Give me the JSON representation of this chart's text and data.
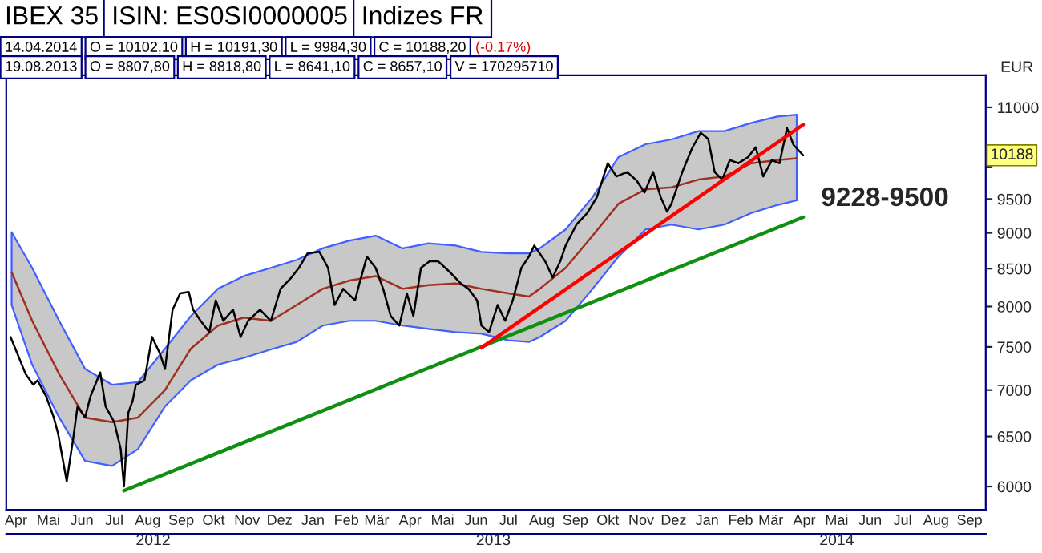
{
  "chart_data": {
    "type": "line",
    "title": "IBEX 35",
    "subtitle": "ISIN: ES0SI0000005",
    "ylabel": "EUR",
    "annotations": [
      "Indizes FR",
      "14.04.2014",
      "O = 10102,10",
      "H = 10191,30",
      "L = 9984,30",
      "C = 10188,20",
      "(-0.17%)",
      "19.08.2013",
      "O = 8807,80",
      "H = 8818,80",
      "L = 8641,10",
      "C = 8657,10",
      "V = 170295710",
      {
        "text": "9228-9500",
        "x": "2014-04-14",
        "y": 9500
      },
      {
        "text": "10188",
        "y": 10188
      }
    ],
    "log": true,
    "xlim": [
      "2012-04-06",
      "2014-09-30"
    ],
    "xticks": [
      {
        "value": "2012-04-15",
        "label": "Apr"
      },
      {
        "value": "2012-05-15",
        "label": "Mai"
      },
      {
        "value": "2012-06-15",
        "label": "Jun"
      },
      {
        "value": "2012-07-15",
        "label": "Jul"
      },
      {
        "value": "2012-08-15",
        "label": "Aug"
      },
      {
        "value": "2012-09-15",
        "label": "Sep"
      },
      {
        "value": "2012-10-15",
        "label": "Okt"
      },
      {
        "value": "2012-11-15",
        "label": "Nov"
      },
      {
        "value": "2012-12-15",
        "label": "Dez"
      },
      {
        "value": "2013-01-15",
        "label": "Jan"
      },
      {
        "value": "2013-02-15",
        "label": "Feb"
      },
      {
        "value": "2013-03-15",
        "label": "Mär"
      },
      {
        "value": "2013-04-15",
        "label": "Apr"
      },
      {
        "value": "2013-05-15",
        "label": "Mai"
      },
      {
        "value": "2013-06-15",
        "label": "Jun"
      },
      {
        "value": "2013-07-15",
        "label": "Jul"
      },
      {
        "value": "2013-08-15",
        "label": "Aug"
      },
      {
        "value": "2013-09-15",
        "label": "Sep"
      },
      {
        "value": "2013-10-15",
        "label": "Okt"
      },
      {
        "value": "2013-11-15",
        "label": "Nov"
      },
      {
        "value": "2013-12-15",
        "label": "Dez"
      },
      {
        "value": "2014-01-15",
        "label": "Jan"
      },
      {
        "value": "2014-02-15",
        "label": "Feb"
      },
      {
        "value": "2014-03-15",
        "label": "Mär"
      },
      {
        "value": "2014-04-15",
        "label": "Apr"
      },
      {
        "value": "2014-05-15",
        "label": "Mai"
      },
      {
        "value": "2014-06-15",
        "label": "Jun"
      },
      {
        "value": "2014-07-15",
        "label": "Jul"
      },
      {
        "value": "2014-08-15",
        "label": "Aug"
      },
      {
        "value": "2014-09-15",
        "label": "Sep"
      }
    ],
    "x2lim": [
      "2012-04-06",
      "2014-09-30"
    ],
    "x2ticks": [
      {
        "value": "2012-08-20",
        "label": "2012"
      },
      {
        "value": "2013-07-01",
        "label": "2013"
      },
      {
        "value": "2014-05-15",
        "label": "2014"
      }
    ],
    "ylim": [
      5780,
      11580
    ],
    "yticks": [
      6000,
      6500,
      7000,
      7500,
      8000,
      8500,
      9000,
      9500,
      {
        "value": 10000,
        "label": null
      },
      11000
    ],
    "series": [
      {
        "color": "#a03020",
        "x": [
          "2012-04-11",
          "2012-04-30",
          "2012-05-25",
          "2012-06-18",
          "2012-07-13",
          "2012-08-06",
          "2012-08-31",
          "2012-09-24",
          "2012-10-19",
          "2012-11-12",
          "2012-12-07",
          "2012-12-31",
          "2013-01-24",
          "2013-02-18",
          "2013-03-14",
          "2013-04-08",
          "2013-05-02",
          "2013-05-27",
          "2013-06-20",
          "2013-07-15",
          "2013-08-03",
          "2013-08-13",
          "2013-09-06",
          "2013-10-01",
          "2013-10-25",
          "2013-11-19",
          "2013-12-13",
          "2014-01-07",
          "2014-01-31",
          "2014-02-25",
          "2014-03-21",
          "2014-04-08"
        ],
        "values": [
          8450,
          7820,
          7180,
          6700,
          6650,
          6700,
          7000,
          7480,
          7760,
          7860,
          7820,
          8020,
          8230,
          8340,
          8400,
          8230,
          8280,
          8300,
          8230,
          8170,
          8130,
          8230,
          8510,
          8960,
          9430,
          9650,
          9680,
          9800,
          9850,
          10060,
          10110,
          10140
        ],
        "upper": [
          9010,
          8510,
          7820,
          7240,
          7060,
          7090,
          7480,
          7880,
          8230,
          8400,
          8510,
          8620,
          8780,
          8890,
          8960,
          8780,
          8850,
          8820,
          8730,
          8710,
          8710,
          8780,
          9050,
          9530,
          10160,
          10370,
          10450,
          10590,
          10590,
          10730,
          10840,
          10870
        ],
        "lower": [
          8020,
          7290,
          6700,
          6250,
          6200,
          6370,
          6820,
          7110,
          7290,
          7370,
          7470,
          7560,
          7760,
          7820,
          7820,
          7760,
          7720,
          7680,
          7660,
          7580,
          7560,
          7620,
          7820,
          8230,
          8665,
          9050,
          9120,
          9050,
          9120,
          9290,
          9410,
          9480
        ]
      },
      {
        "color": "#000000",
        "x": [
          "2012-04-10",
          "2012-04-16",
          "2012-04-24",
          "2012-05-01",
          "2012-05-05",
          "2012-05-13",
          "2012-05-20",
          "2012-05-24",
          "2012-06-01",
          "2012-06-07",
          "2012-06-11",
          "2012-06-18",
          "2012-06-23",
          "2012-07-02",
          "2012-07-07",
          "2012-07-15",
          "2012-07-21",
          "2012-07-24",
          "2012-07-28",
          "2012-08-01",
          "2012-08-04",
          "2012-08-12",
          "2012-08-19",
          "2012-08-26",
          "2012-08-31",
          "2012-09-07",
          "2012-09-14",
          "2012-09-22",
          "2012-09-26",
          "2012-10-03",
          "2012-10-11",
          "2012-10-17",
          "2012-10-24",
          "2012-11-02",
          "2012-11-09",
          "2012-11-16",
          "2012-11-27",
          "2012-12-07",
          "2012-12-16",
          "2012-12-26",
          "2013-01-02",
          "2013-01-10",
          "2013-01-21",
          "2013-01-29",
          "2013-02-04",
          "2013-02-12",
          "2013-02-23",
          "2013-02-27",
          "2013-03-06",
          "2013-03-14",
          "2013-03-21",
          "2013-03-28",
          "2013-04-05",
          "2013-04-12",
          "2013-04-18",
          "2013-04-25",
          "2013-05-03",
          "2013-05-11",
          "2013-05-22",
          "2013-06-01",
          "2013-06-08",
          "2013-06-16",
          "2013-06-20",
          "2013-06-27",
          "2013-07-05",
          "2013-07-12",
          "2013-07-19",
          "2013-07-27",
          "2013-08-03",
          "2013-08-08",
          "2013-08-18",
          "2013-08-25",
          "2013-09-01",
          "2013-09-06",
          "2013-09-16",
          "2013-09-26",
          "2013-10-05",
          "2013-10-15",
          "2013-10-23",
          "2013-11-02",
          "2013-11-11",
          "2013-11-18",
          "2013-11-26",
          "2013-12-03",
          "2013-12-09",
          "2013-12-13",
          "2013-12-23",
          "2014-01-01",
          "2014-01-09",
          "2014-01-16",
          "2014-01-22",
          "2014-01-29",
          "2014-02-05",
          "2014-02-13",
          "2014-02-22",
          "2014-03-01",
          "2014-03-08",
          "2014-03-16",
          "2014-03-23",
          "2014-03-30",
          "2014-04-05",
          "2014-04-14"
        ],
        "values": [
          7620,
          7430,
          7180,
          7060,
          7110,
          6930,
          6700,
          6530,
          6050,
          6480,
          6820,
          6700,
          6930,
          7200,
          6820,
          6650,
          6370,
          6000,
          6750,
          6880,
          7060,
          7110,
          7620,
          7430,
          7240,
          7960,
          8170,
          8190,
          7960,
          7820,
          7680,
          8080,
          7820,
          7960,
          7620,
          7820,
          7960,
          7820,
          8230,
          8380,
          8510,
          8710,
          8730,
          8510,
          8020,
          8230,
          8080,
          8300,
          8665,
          8510,
          8230,
          7880,
          7760,
          8170,
          7880,
          8510,
          8600,
          8600,
          8450,
          8300,
          8230,
          8080,
          7760,
          7680,
          8020,
          7820,
          8080,
          8510,
          8665,
          8820,
          8600,
          8380,
          8600,
          8820,
          9120,
          9290,
          9530,
          10060,
          9850,
          9920,
          9780,
          9600,
          9920,
          9530,
          9310,
          9430,
          9920,
          10300,
          10560,
          10460,
          9920,
          9800,
          10110,
          10060,
          10160,
          10320,
          9850,
          10110,
          10060,
          10640,
          10360,
          10188
        ]
      },
      {
        "color": "#109010",
        "x": [
          "2012-07-24",
          "2014-04-14"
        ],
        "values": [
          5960,
          9228
        ]
      },
      {
        "color": "#ff0000",
        "x": [
          "2013-06-20",
          "2014-04-14"
        ],
        "values": [
          7490,
          10700
        ]
      }
    ]
  }
}
